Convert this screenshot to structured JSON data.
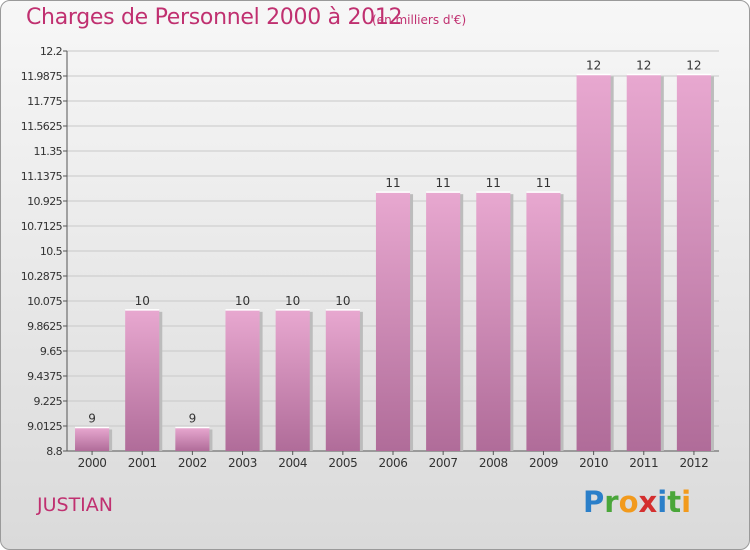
{
  "title": "Charges de Personnel 2000 à 2012",
  "subtitle": "(en milliers d'€)",
  "commune": "JUSTIAN",
  "logo": {
    "letters": [
      "P",
      "r",
      "o",
      "x",
      "i",
      "t",
      "i"
    ],
    "colors": [
      "#2b7fc9",
      "#4aa63a",
      "#f29a1c",
      "#d42f2f",
      "#2b7fc9",
      "#4aa63a",
      "#f29a1c"
    ]
  },
  "colors": {
    "accent": "#c03070",
    "bar_top": "#e8a8d0",
    "bar_bottom": "#b06c99"
  },
  "chart_data": {
    "type": "bar",
    "categories": [
      "2000",
      "2001",
      "2002",
      "2003",
      "2004",
      "2005",
      "2006",
      "2007",
      "2008",
      "2009",
      "2010",
      "2011",
      "2012"
    ],
    "values": [
      9,
      10,
      9,
      10,
      10,
      10,
      11,
      11,
      11,
      11,
      12,
      12,
      12
    ],
    "ylim": [
      8.8,
      12.2
    ],
    "yticks": [
      "8.8",
      "9.0125",
      "9.225",
      "9.4375",
      "9.65",
      "9.8625",
      "10.075",
      "10.2875",
      "10.5",
      "10.7125",
      "10.925",
      "11.1375",
      "11.35",
      "11.5625",
      "11.775",
      "11.9875",
      "12.2"
    ],
    "value_labels": [
      "9",
      "10",
      "9",
      "10",
      "10",
      "10",
      "11",
      "11",
      "11",
      "11",
      "12",
      "12",
      "12"
    ],
    "grid": true,
    "legend": "none"
  }
}
